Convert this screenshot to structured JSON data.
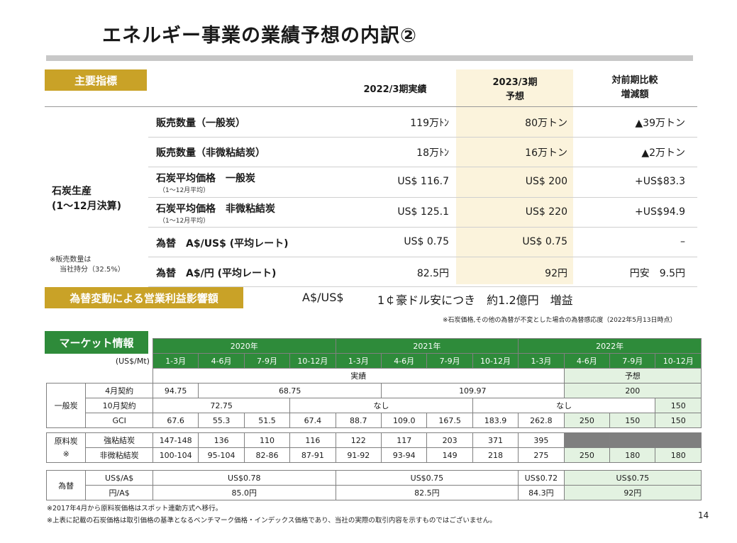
{
  "title": "エネルギー事業の業績予想の内訳②",
  "page_number": "14",
  "kpi": {
    "section_label": "主要指標",
    "col_actual": "2022/3期実績",
    "col_forecast_line1": "2023/3期",
    "col_forecast_line2": "予想",
    "col_diff_line1": "対前期比較",
    "col_diff_line2": "増減額",
    "group_label_line1": "石炭生産",
    "group_label_line2": "(1〜12月決算)",
    "note_line1": "※販売数量は",
    "note_line2": "当社持分（32.5%）",
    "rows": [
      {
        "label": "販売数量（一般炭）",
        "sub": "",
        "actual": "119万ﾄﾝ",
        "forecast": "80万トン",
        "diff": "▲39万トン"
      },
      {
        "label": "販売数量（非微粘結炭）",
        "sub": "",
        "actual": "18万ﾄﾝ",
        "forecast": "16万トン",
        "diff": "▲2万トン"
      },
      {
        "label": "石炭平均価格　一般炭",
        "sub": "（1〜12月平均）",
        "actual": "US$ 116.7",
        "forecast": "US$ 200",
        "diff": "+US$83.3"
      },
      {
        "label": "石炭平均価格　非微粘結炭",
        "sub": "（1〜12月平均）",
        "actual": "US$ 125.1",
        "forecast": "US$ 220",
        "diff": "+US$94.9"
      },
      {
        "label": "為替　A$/US$ (平均レート)",
        "sub": "",
        "actual": "US$ 0.75",
        "forecast": "US$ 0.75",
        "diff": "–"
      },
      {
        "label": "為替　A$/円 (平均レート)",
        "sub": "",
        "actual": "82.5円",
        "forecast": "92円",
        "diff": "円安　9.5円"
      }
    ]
  },
  "fx_impact": {
    "label": "為替変動による営業利益影響額",
    "pair": "A$/US$",
    "text": "1￠豪ドル安につき　約1.2億円　増益",
    "note": "※石炭価格,その他の為替が不変とした場合の為替感応度（2022年5月13日時点）"
  },
  "market": {
    "label": "マーケット情報",
    "unit": "(US$/Mt)",
    "years": [
      "2020年",
      "2021年",
      "2022年"
    ],
    "quarters": [
      "1-3月",
      "4-6月",
      "7-9月",
      "10-12月",
      "1-3月",
      "4-6月",
      "7-9月",
      "10-12月",
      "1-3月",
      "4-6月",
      "7-9月",
      "10-12月"
    ],
    "actual_label": "実績",
    "forecast_label": "予想",
    "thermal_label": "一般炭",
    "coking_label_line1": "原料炭",
    "coking_label_line2": "※",
    "fx_label": "為替",
    "rows": {
      "april_contract": {
        "label": "4月契約",
        "v2020q1": "94.75",
        "v2020rest": "68.75",
        "v2021": "109.97",
        "forecast": "200"
      },
      "october_contract": {
        "label": "10月契約",
        "v2020": "72.75",
        "v2021": "なし",
        "v2022": "なし",
        "forecast": "150"
      },
      "gci": {
        "label": "GCI",
        "values": [
          "67.6",
          "55.3",
          "51.5",
          "67.4",
          "88.7",
          "109.0",
          "167.5",
          "183.9",
          "262.8",
          "250",
          "150",
          "150"
        ]
      },
      "hard_coking": {
        "label": "強粘結炭",
        "values": [
          "147-148",
          "136",
          "110",
          "116",
          "122",
          "117",
          "203",
          "371",
          "395"
        ]
      },
      "semi_soft": {
        "label": "非微粘結炭",
        "values": [
          "100-104",
          "95-104",
          "82-86",
          "87-91",
          "91-92",
          "93-94",
          "149",
          "218",
          "275",
          "250",
          "180",
          "180"
        ]
      },
      "usd_aud": {
        "label": "US$/A$",
        "v2020": "US$0.78",
        "v2021": "US$0.75",
        "v2022q1": "US$0.72",
        "forecast": "US$0.75"
      },
      "jpy_aud": {
        "label": "円/A$",
        "v2020": "85.0円",
        "v2021": "82.5円",
        "v2022q1": "84.3円",
        "forecast": "92円"
      }
    }
  },
  "footnotes": [
    "※2017年4月から原料炭価格はスポット連動方式へ移行。",
    "※上表に記載の石炭価格は取引価格の基準となるベンチマーク価格・インデックス価格であり、当社の実際の取引内容を示すものではございません。"
  ]
}
